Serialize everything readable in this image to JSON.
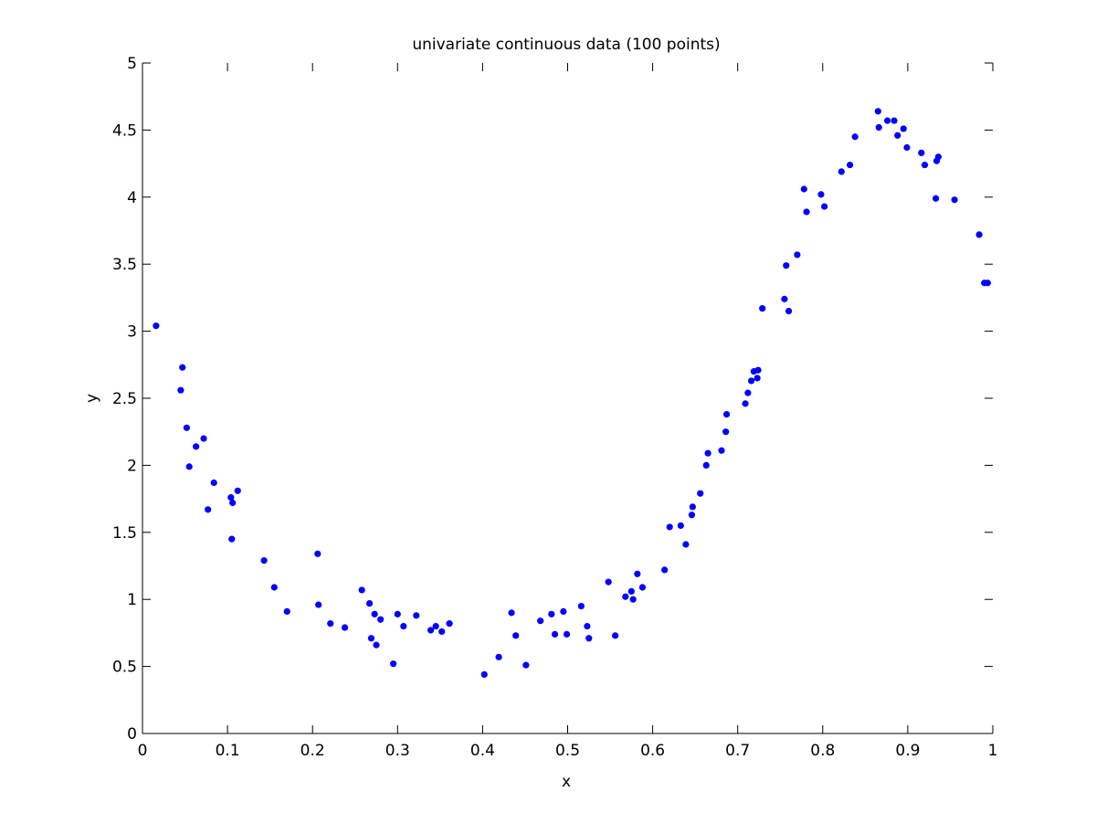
{
  "chart_data": {
    "type": "scatter",
    "title": "univariate continuous data (100 points)",
    "xlabel": "x",
    "ylabel": "y",
    "xlim": [
      0,
      1
    ],
    "ylim": [
      0,
      5
    ],
    "xticks": [
      0,
      0.1,
      0.2,
      0.3,
      0.4,
      0.5,
      0.6,
      0.7,
      0.8,
      0.9,
      1
    ],
    "xtick_labels": [
      "0",
      "0.1",
      "0.2",
      "0.3",
      "0.4",
      "0.5",
      "0.6",
      "0.7",
      "0.8",
      "0.9",
      "1"
    ],
    "yticks": [
      0,
      0.5,
      1,
      1.5,
      2,
      2.5,
      3,
      3.5,
      4,
      4.5,
      5
    ],
    "ytick_labels": [
      "0",
      "0.5",
      "1",
      "1.5",
      "2",
      "2.5",
      "3",
      "3.5",
      "4",
      "4.5",
      "5"
    ],
    "grid": false,
    "marker_color": "#0000ff",
    "points": [
      [
        0.016,
        3.04
      ],
      [
        0.045,
        2.56
      ],
      [
        0.047,
        2.73
      ],
      [
        0.052,
        2.28
      ],
      [
        0.055,
        1.99
      ],
      [
        0.063,
        2.14
      ],
      [
        0.072,
        2.2
      ],
      [
        0.077,
        1.67
      ],
      [
        0.084,
        1.87
      ],
      [
        0.104,
        1.76
      ],
      [
        0.106,
        1.72
      ],
      [
        0.105,
        1.45
      ],
      [
        0.112,
        1.81
      ],
      [
        0.143,
        1.29
      ],
      [
        0.155,
        1.09
      ],
      [
        0.17,
        0.91
      ],
      [
        0.206,
        1.34
      ],
      [
        0.207,
        0.96
      ],
      [
        0.221,
        0.82
      ],
      [
        0.238,
        0.79
      ],
      [
        0.258,
        1.07
      ],
      [
        0.267,
        0.97
      ],
      [
        0.269,
        0.71
      ],
      [
        0.273,
        0.89
      ],
      [
        0.275,
        0.66
      ],
      [
        0.28,
        0.85
      ],
      [
        0.295,
        0.52
      ],
      [
        0.3,
        0.89
      ],
      [
        0.307,
        0.8
      ],
      [
        0.322,
        0.88
      ],
      [
        0.339,
        0.77
      ],
      [
        0.345,
        0.8
      ],
      [
        0.352,
        0.76
      ],
      [
        0.361,
        0.82
      ],
      [
        0.402,
        0.44
      ],
      [
        0.419,
        0.57
      ],
      [
        0.434,
        0.9
      ],
      [
        0.439,
        0.73
      ],
      [
        0.451,
        0.51
      ],
      [
        0.468,
        0.84
      ],
      [
        0.481,
        0.89
      ],
      [
        0.485,
        0.74
      ],
      [
        0.495,
        0.91
      ],
      [
        0.499,
        0.74
      ],
      [
        0.516,
        0.95
      ],
      [
        0.523,
        0.8
      ],
      [
        0.525,
        0.71
      ],
      [
        0.548,
        1.13
      ],
      [
        0.556,
        0.73
      ],
      [
        0.568,
        1.02
      ],
      [
        0.575,
        1.06
      ],
      [
        0.577,
        1.0
      ],
      [
        0.582,
        1.19
      ],
      [
        0.588,
        1.09
      ],
      [
        0.614,
        1.22
      ],
      [
        0.62,
        1.54
      ],
      [
        0.633,
        1.55
      ],
      [
        0.639,
        1.41
      ],
      [
        0.646,
        1.63
      ],
      [
        0.647,
        1.69
      ],
      [
        0.656,
        1.79
      ],
      [
        0.663,
        2.0
      ],
      [
        0.665,
        2.09
      ],
      [
        0.681,
        2.11
      ],
      [
        0.686,
        2.25
      ],
      [
        0.687,
        2.38
      ],
      [
        0.709,
        2.46
      ],
      [
        0.712,
        2.54
      ],
      [
        0.716,
        2.63
      ],
      [
        0.719,
        2.7
      ],
      [
        0.723,
        2.65
      ],
      [
        0.724,
        2.71
      ],
      [
        0.729,
        3.17
      ],
      [
        0.755,
        3.24
      ],
      [
        0.757,
        3.49
      ],
      [
        0.76,
        3.15
      ],
      [
        0.77,
        3.57
      ],
      [
        0.778,
        4.06
      ],
      [
        0.781,
        3.89
      ],
      [
        0.798,
        4.02
      ],
      [
        0.802,
        3.93
      ],
      [
        0.822,
        4.19
      ],
      [
        0.832,
        4.24
      ],
      [
        0.838,
        4.45
      ],
      [
        0.865,
        4.64
      ],
      [
        0.866,
        4.52
      ],
      [
        0.876,
        4.57
      ],
      [
        0.884,
        4.57
      ],
      [
        0.888,
        4.46
      ],
      [
        0.895,
        4.51
      ],
      [
        0.899,
        4.37
      ],
      [
        0.916,
        4.33
      ],
      [
        0.92,
        4.24
      ],
      [
        0.933,
        3.99
      ],
      [
        0.934,
        4.27
      ],
      [
        0.936,
        4.3
      ],
      [
        0.955,
        3.98
      ],
      [
        0.984,
        3.72
      ],
      [
        0.99,
        3.36
      ],
      [
        0.994,
        3.36
      ]
    ]
  }
}
